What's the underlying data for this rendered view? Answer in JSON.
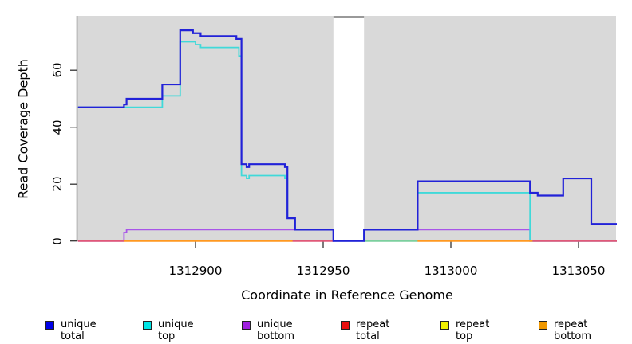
{
  "chart_data": {
    "type": "line",
    "subtype": "step-coverage-plot",
    "xlabel": "Coordinate in Reference Genome",
    "ylabel": "Read Coverage Depth",
    "xlim": [
      1312854,
      1313065
    ],
    "ylim": [
      0,
      79
    ],
    "x_ticks": [
      1312900,
      1312950,
      1313000,
      1313050
    ],
    "y_ticks": [
      0,
      20,
      40,
      60
    ],
    "plot_bg": "#d9d9d9",
    "axis_color": "#333333",
    "gap": {
      "from": 1312954,
      "to": 1312966,
      "top_line_color": "#999999",
      "fill": "#ffffff"
    },
    "series": [
      {
        "name": "unique_total",
        "legend_label": "unique total",
        "legend_color": "#0000e8",
        "line_color": "#2222d8",
        "steps": [
          [
            1312854,
            47
          ],
          [
            1312872,
            48
          ],
          [
            1312873,
            50
          ],
          [
            1312887,
            55
          ],
          [
            1312894,
            74
          ],
          [
            1312899,
            73
          ],
          [
            1312902,
            72
          ],
          [
            1312916,
            71
          ],
          [
            1312918,
            27
          ],
          [
            1312920,
            26
          ],
          [
            1312921,
            27
          ],
          [
            1312935,
            26
          ],
          [
            1312936,
            8
          ],
          [
            1312939,
            4
          ],
          [
            1312954,
            0
          ],
          [
            1312966,
            4
          ],
          [
            1312987,
            21
          ],
          [
            1313031,
            17
          ],
          [
            1313034,
            16
          ],
          [
            1313044,
            22
          ],
          [
            1313055,
            6
          ],
          [
            1313065,
            6
          ]
        ]
      },
      {
        "name": "unique_top",
        "legend_label": "unique top",
        "legend_color": "#00e5e5",
        "line_color": "#40d9d9",
        "steps": [
          [
            1312854,
            47
          ],
          [
            1312887,
            51
          ],
          [
            1312894,
            70
          ],
          [
            1312900,
            69
          ],
          [
            1312902,
            68
          ],
          [
            1312917,
            65
          ],
          [
            1312918,
            23
          ],
          [
            1312920,
            22
          ],
          [
            1312921,
            23
          ],
          [
            1312935,
            22
          ],
          [
            1312936,
            8
          ],
          [
            1312939,
            4
          ],
          [
            1312954,
            0
          ],
          [
            1312966,
            4
          ],
          [
            1312987,
            17
          ],
          [
            1313031,
            0
          ],
          [
            1313065,
            0
          ]
        ]
      },
      {
        "name": "unique_bottom",
        "legend_label": "unique bottom",
        "legend_color": "#a020e0",
        "line_color": "#a855e8",
        "steps": [
          [
            1312854,
            0
          ],
          [
            1312872,
            3
          ],
          [
            1312873,
            4
          ],
          [
            1312954,
            0
          ],
          [
            1312966,
            4
          ],
          [
            1313031,
            0
          ],
          [
            1313065,
            0
          ]
        ]
      },
      {
        "name": "repeat_total",
        "legend_label": "repeat total",
        "legend_color": "#e81010",
        "line_color": "#e05878",
        "steps": [
          [
            1312854,
            0
          ],
          [
            1313065,
            0
          ]
        ]
      },
      {
        "name": "repeat_top",
        "legend_label": "repeat top",
        "legend_color": "#f0f000",
        "line_color": "#e8e840",
        "steps": [
          [
            1312854,
            0
          ],
          [
            1313065,
            0
          ]
        ]
      },
      {
        "name": "repeat_bottom",
        "legend_label": "repeat bottom",
        "legend_color": "#f09800",
        "line_color": "#ff9820",
        "steps": [
          [
            1312854,
            0
          ],
          [
            1313065,
            0
          ]
        ]
      }
    ],
    "visible_zero_segments": [
      {
        "from": 1312854,
        "to": 1312872,
        "color": "#e05878",
        "represents": "repeat total"
      },
      {
        "from": 1312872,
        "to": 1312938,
        "color": "#ff9820",
        "represents": "repeat bottom"
      },
      {
        "from": 1312938,
        "to": 1312954,
        "color": "#e05878",
        "represents": "repeat total"
      },
      {
        "from": 1312966,
        "to": 1312987,
        "color": "#7ccf9e",
        "represents": "repeat top + unique top"
      },
      {
        "from": 1312987,
        "to": 1313032,
        "color": "#ff9820",
        "represents": "repeat bottom"
      },
      {
        "from": 1313032,
        "to": 1313065,
        "color": "#e05878",
        "represents": "repeat total"
      }
    ]
  }
}
